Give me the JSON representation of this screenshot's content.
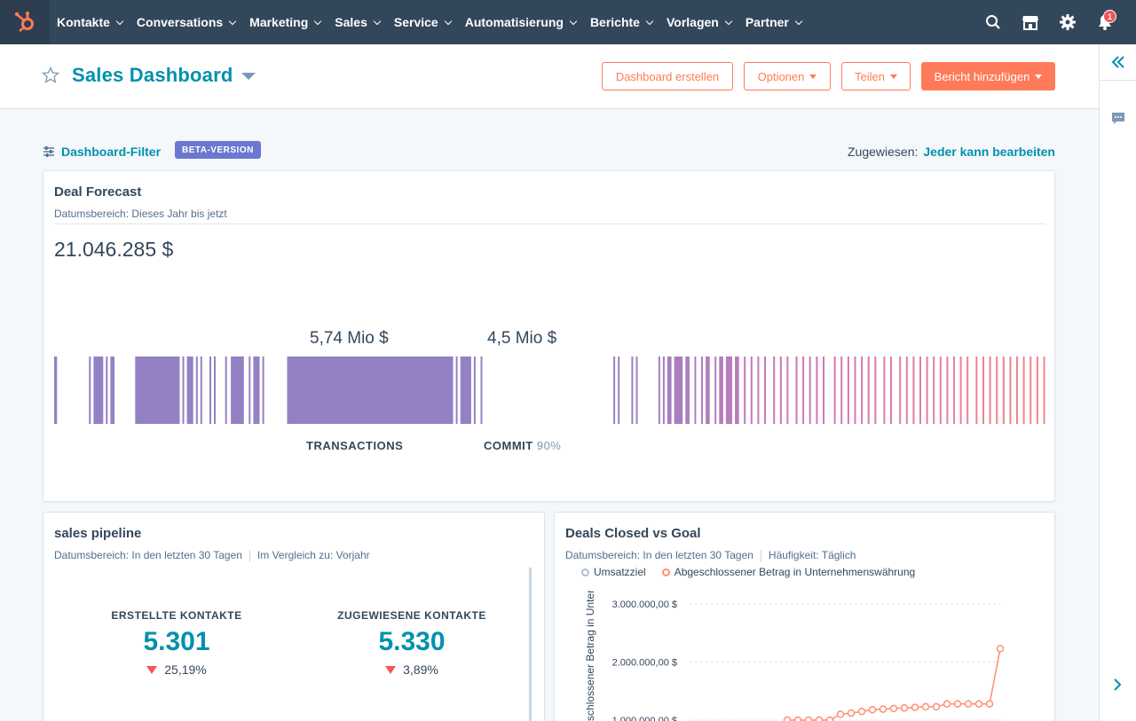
{
  "nav": {
    "items": [
      {
        "label": "Kontakte"
      },
      {
        "label": "Conversations"
      },
      {
        "label": "Marketing"
      },
      {
        "label": "Sales"
      },
      {
        "label": "Service"
      },
      {
        "label": "Automatisierung"
      },
      {
        "label": "Berichte"
      },
      {
        "label": "Vorlagen"
      },
      {
        "label": "Partner"
      }
    ],
    "notification_count": "1"
  },
  "header": {
    "title": "Sales Dashboard",
    "buttons": {
      "create": "Dashboard erstellen",
      "options": "Optionen",
      "share": "Teilen",
      "add_report": "Bericht hinzufügen"
    }
  },
  "filter": {
    "label": "Dashboard-Filter",
    "beta": "BETA-VERSION",
    "assigned_label": "Zugewiesen:",
    "assigned_value": "Jeder kann bearbeiten"
  },
  "deal_forecast": {
    "title": "Deal Forecast",
    "subtitle": "Datumsbereich: Dieses Jahr bis jetzt",
    "total": "21.046.285 $",
    "segments": [
      {
        "label": "5,74 Mio $",
        "category": "TRANSACTIONS",
        "pct": ""
      },
      {
        "label": "4,5 Mio $",
        "category": "COMMIT",
        "pct": "90%"
      }
    ]
  },
  "sales_pipeline": {
    "title": "sales pipeline",
    "subtitle_range": "Datumsbereich: In den letzten 30 Tagen",
    "subtitle_compare": "Im Vergleich zu: Vorjahr",
    "kpis": [
      {
        "title": "ERSTELLTE KONTAKTE",
        "value": "5.301",
        "change": "25,19%"
      },
      {
        "title": "ZUGEWIESENE KONTAKTE",
        "value": "5.330",
        "change": "3,89%"
      }
    ]
  },
  "deals_closed": {
    "title": "Deals Closed vs Goal",
    "subtitle_range": "Datumsbereich: In den letzten 30 Tagen",
    "subtitle_freq": "Häufigkeit: Täglich",
    "legend": [
      "Umsatzziel",
      "Abgeschlossener Betrag in Unternehmenswährung"
    ],
    "colors": {
      "goal": "#b0bfcf",
      "amount": "#ff8f73"
    }
  },
  "chart_data": {
    "type": "line",
    "ylabel": "Abgeschlossener Betrag in Unternehmenswährung",
    "y_ticks": [
      "3.000.000,00 $",
      "2.000.000,00 $",
      "1.000.000,00 $"
    ],
    "ylim": [
      1000000,
      3000000
    ],
    "series": [
      {
        "name": "Abgeschlossener Betrag in Unternehmenswährung",
        "values": [
          1000000,
          1000000,
          1000000,
          1000000,
          1000000,
          1100000,
          1120000,
          1150000,
          1180000,
          1190000,
          1200000,
          1210000,
          1220000,
          1230000,
          1230000,
          1280000,
          1280000,
          1280000,
          1280000,
          1280000,
          2230000
        ]
      }
    ]
  }
}
